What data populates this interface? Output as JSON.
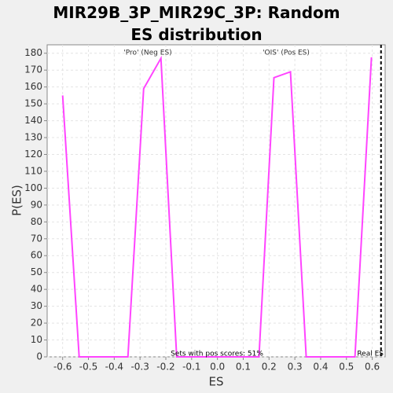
{
  "chart_data": {
    "type": "line",
    "title": "MIR29B_3P_MIR29C_3P: Random ES distribution",
    "x_label": "ES",
    "y_label": "P(ES)",
    "x": [
      -0.6,
      -0.536,
      -0.347,
      -0.286,
      -0.219,
      -0.158,
      0.161,
      0.219,
      0.283,
      0.344,
      0.533,
      0.597
    ],
    "series": [
      {
        "color": "#ff44ff",
        "values": [
          155,
          0,
          0,
          159,
          177,
          0,
          0,
          165.5,
          169,
          0,
          0,
          177.6
        ]
      }
    ],
    "xlim": [
      -0.66,
      0.65
    ],
    "ylim": [
      0,
      185
    ],
    "xticks": [
      -0.6,
      -0.5,
      -0.4,
      -0.3,
      -0.2,
      -0.1,
      {
        "value": 0,
        "label": "0.0"
      },
      0.1,
      0.2,
      0.3,
      0.4,
      0.5,
      0.6
    ],
    "yticks": [
      0,
      10,
      20,
      30,
      40,
      50,
      60,
      70,
      80,
      90,
      100,
      110,
      120,
      130,
      140,
      150,
      160,
      170,
      180
    ],
    "grid": true,
    "real_es": 0.634,
    "real_es_label": "Real ES",
    "neg_label": "'Pro' (Neg ES)",
    "neg_color": "#0000ff",
    "pos_label": "'OIS' (Pos ES)",
    "pos_color": "#ff0000",
    "note": "Sets with pos scores: 51%"
  }
}
